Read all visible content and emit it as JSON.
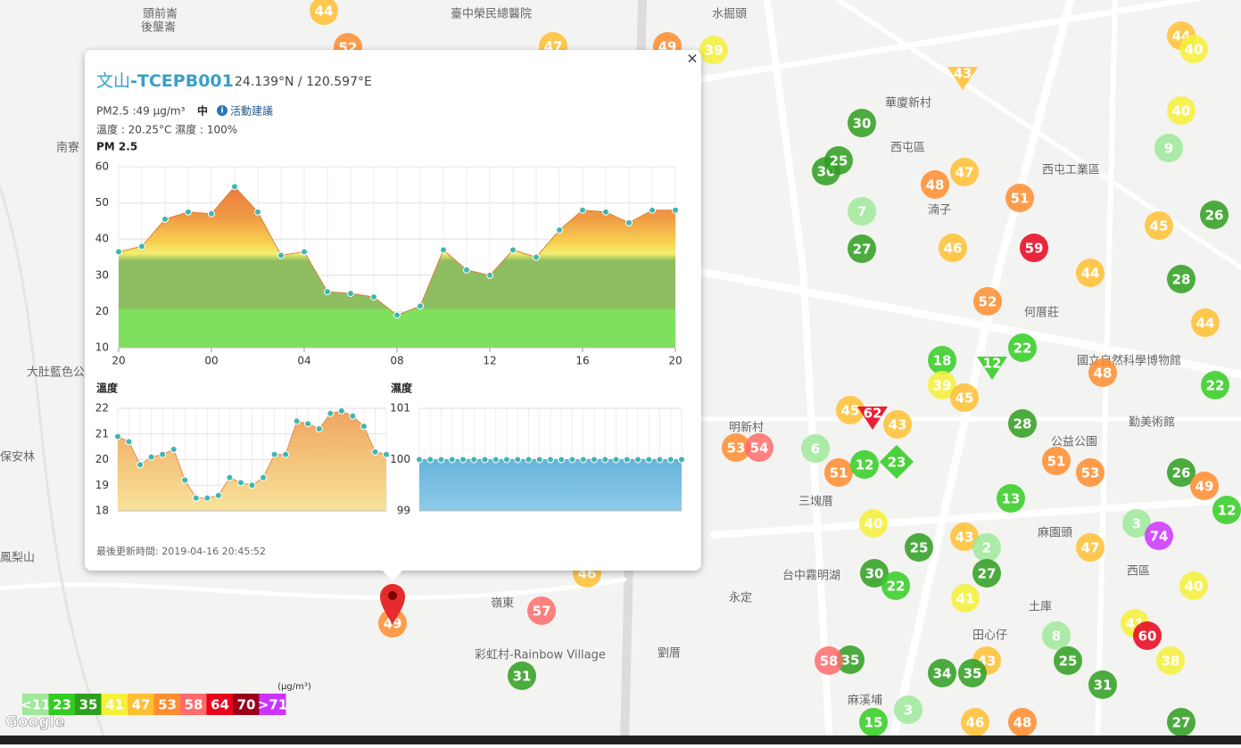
{
  "popup": {
    "close": "×",
    "title_main": "文山",
    "title_id": "-TCEPB001",
    "coords": "24.139°N / 120.597°E",
    "pm_line": "PM2.5 :49 μg/m³",
    "level": "中",
    "advice": "活動建議",
    "weather": "溫度 : 20.25°C 濕度 : 100%",
    "updated": "最後更新時間: 2019-04-16 20:45:52",
    "pm_chart": {
      "type": "area",
      "title": "PM 2.5",
      "ylim": [
        10,
        60
      ],
      "yticks": [
        10,
        20,
        30,
        40,
        50,
        60
      ],
      "xticks": [
        {
          "value": 0,
          "label": "20"
        },
        {
          "value": 4,
          "label": "00"
        },
        {
          "value": 8,
          "label": "04"
        },
        {
          "value": 12,
          "label": "08"
        },
        {
          "value": 16,
          "label": "12"
        },
        {
          "value": 20,
          "label": "16"
        },
        {
          "value": 24,
          "label": "20"
        }
      ],
      "values": [
        36.5,
        38,
        45.5,
        47.5,
        47,
        54.5,
        47.5,
        35.5,
        36.5,
        25.5,
        25,
        24,
        19,
        21.5,
        37,
        31.5,
        30,
        37,
        35,
        42.5,
        48,
        47.5,
        44.5,
        48,
        48
      ]
    },
    "temp_chart": {
      "type": "area",
      "title": "溫度",
      "ylim": [
        18,
        22
      ],
      "yticks": [
        18,
        19,
        20,
        21,
        22
      ],
      "values": [
        20.9,
        20.7,
        19.8,
        20.1,
        20.2,
        20.4,
        19.2,
        18.5,
        18.5,
        18.6,
        19.3,
        19.1,
        19.0,
        19.3,
        20.2,
        20.2,
        21.5,
        21.4,
        21.2,
        21.8,
        21.9,
        21.7,
        21.3,
        20.3,
        20.2
      ]
    },
    "humid_chart": {
      "type": "area",
      "title": "濕度",
      "ylim": [
        99,
        101
      ],
      "yticks": [
        99,
        100,
        101
      ],
      "values": [
        100,
        100,
        100,
        100,
        100,
        100,
        100,
        100,
        100,
        100,
        100,
        100,
        100,
        100,
        100,
        100,
        100,
        100,
        100,
        100,
        100,
        100,
        100,
        100,
        100
      ]
    }
  },
  "places": [
    "頭前崙",
    "後壟崙",
    "臺中榮民總醫院",
    "水掘頭",
    "華廈新村",
    "西屯區",
    "南寮",
    "湳子",
    "西屯工業區",
    "大肚藍色公路",
    "何厝莊",
    "國立自然科學博物館",
    "勤美術館",
    "公益公園",
    "明新村",
    "三塊厝",
    "麻園頭",
    "西區",
    "永定",
    "土庫",
    "田心仔",
    "劉厝",
    "彩虹村-Rainbow Village",
    "保安林",
    "鳳梨山",
    "麻溪埔",
    "台中霧明湖",
    "嶺東"
  ],
  "markers": [
    44,
    52,
    47,
    49,
    39,
    44,
    40,
    40,
    9,
    30,
    30,
    25,
    48,
    47,
    51,
    7,
    27,
    46,
    59,
    45,
    26,
    44,
    28,
    52,
    44,
    22,
    18,
    39,
    45,
    48,
    22,
    28,
    45,
    43,
    53,
    54,
    6,
    51,
    12,
    51,
    53,
    26,
    49,
    12,
    13,
    40,
    25,
    43,
    2,
    47,
    3,
    74,
    30,
    22,
    27,
    41,
    40,
    46,
    57,
    49,
    8,
    41,
    60,
    25,
    38,
    43,
    34,
    35,
    58,
    35,
    31,
    31,
    3,
    46,
    48,
    15,
    27,
    43,
    12,
    62,
    23
  ],
  "legend": {
    "unit": "(μg/m³)",
    "items": [
      {
        "label": "<11",
        "color": "#9ee89a"
      },
      {
        "label": "23",
        "color": "#33cc22"
      },
      {
        "label": "35",
        "color": "#2e9e1e"
      },
      {
        "label": "41",
        "color": "#f5f03a"
      },
      {
        "label": "47",
        "color": "#ffbf33"
      },
      {
        "label": "53",
        "color": "#ff8c2e"
      },
      {
        "label": "58",
        "color": "#ff6b6b"
      },
      {
        "label": "64",
        "color": "#e8001c"
      },
      {
        "label": "70",
        "color": "#99001a"
      },
      {
        "label": ">71",
        "color": "#cc33ff"
      }
    ]
  },
  "brand": "Google"
}
